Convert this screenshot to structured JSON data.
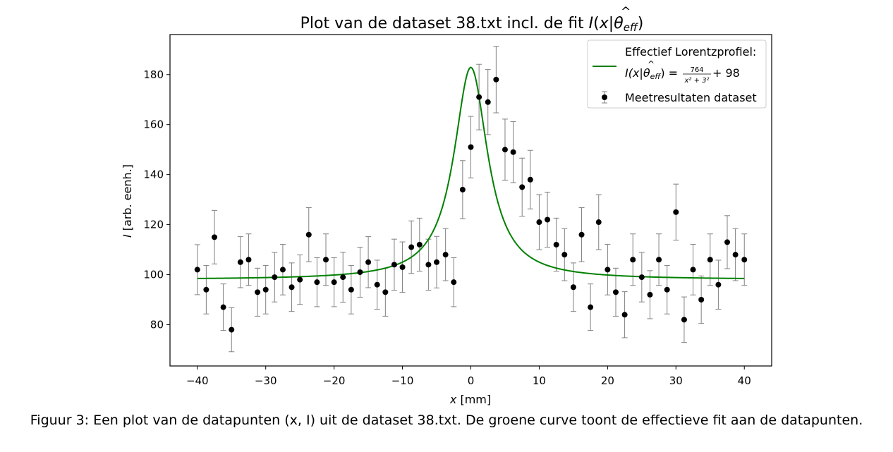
{
  "chart_data": {
    "type": "scatter",
    "title": {
      "prefix": "Plot van de dataset 38.txt incl. de fit ",
      "math": {
        "I": "I",
        "open": "(",
        "x": "x",
        "bar": "|",
        "theta": "θ",
        "hat": "^",
        "sub": "eff",
        "close": ")"
      }
    },
    "xlabel": {
      "var": "x",
      "unit": " [mm]"
    },
    "ylabel": {
      "var": "I",
      "unit": " [arb. eenh.]"
    },
    "xlim": [
      -44,
      44
    ],
    "ylim": [
      63.5,
      196
    ],
    "x_ticks": [
      -40,
      -30,
      -20,
      -10,
      0,
      10,
      20,
      30,
      40
    ],
    "x_tick_labels": [
      "−40",
      "−30",
      "−20",
      "−10",
      "0",
      "10",
      "20",
      "30",
      "40"
    ],
    "y_ticks": [
      80,
      100,
      120,
      140,
      160,
      180
    ],
    "y_tick_labels": [
      "80",
      "100",
      "120",
      "140",
      "160",
      "180"
    ],
    "grid": false,
    "legend_position": "top-right",
    "legend": {
      "fit_label_line1": "Effectief Lorentzprofiel:",
      "fit_formula": {
        "lhs": "I(x|θ",
        "hat": "^",
        "sub": "eff",
        "rhs_open": ")",
        "eq": " = ",
        "numerator": "764",
        "denominator": "x² + 3²",
        "tail": " + 98"
      },
      "data_label": "Meetresultaten dataset"
    },
    "fit": {
      "label": "Effectief Lorentzprofiel",
      "amplitude": 764,
      "gamma": 3,
      "offset": 98,
      "x_range": [
        -40,
        40
      ],
      "color": "#008000"
    },
    "series": [
      {
        "name": "Meetresultaten dataset",
        "color": "#000000",
        "errorbar_color": "#808080",
        "points": [
          {
            "x": -40.0,
            "y": 102,
            "err": 10.0
          },
          {
            "x": -38.7,
            "y": 94,
            "err": 9.7
          },
          {
            "x": -37.5,
            "y": 115,
            "err": 10.7
          },
          {
            "x": -36.2,
            "y": 87,
            "err": 9.3
          },
          {
            "x": -35.0,
            "y": 78,
            "err": 8.8
          },
          {
            "x": -33.7,
            "y": 105,
            "err": 10.2
          },
          {
            "x": -32.5,
            "y": 106,
            "err": 10.3
          },
          {
            "x": -31.2,
            "y": 93,
            "err": 9.6
          },
          {
            "x": -30.0,
            "y": 94,
            "err": 9.7
          },
          {
            "x": -28.7,
            "y": 99,
            "err": 9.9
          },
          {
            "x": -27.5,
            "y": 102,
            "err": 10.1
          },
          {
            "x": -26.2,
            "y": 95,
            "err": 9.7
          },
          {
            "x": -25.0,
            "y": 98,
            "err": 9.9
          },
          {
            "x": -23.7,
            "y": 116,
            "err": 10.8
          },
          {
            "x": -22.5,
            "y": 97,
            "err": 9.8
          },
          {
            "x": -21.2,
            "y": 106,
            "err": 10.3
          },
          {
            "x": -20.0,
            "y": 97,
            "err": 9.8
          },
          {
            "x": -18.7,
            "y": 99,
            "err": 10.0
          },
          {
            "x": -17.5,
            "y": 94,
            "err": 9.7
          },
          {
            "x": -16.2,
            "y": 101,
            "err": 10.0
          },
          {
            "x": -15.0,
            "y": 105,
            "err": 10.2
          },
          {
            "x": -13.7,
            "y": 96,
            "err": 9.8
          },
          {
            "x": -12.5,
            "y": 93,
            "err": 9.6
          },
          {
            "x": -11.2,
            "y": 104,
            "err": 10.2
          },
          {
            "x": -10.0,
            "y": 103,
            "err": 10.1
          },
          {
            "x": -8.7,
            "y": 111,
            "err": 10.5
          },
          {
            "x": -7.5,
            "y": 112,
            "err": 10.6
          },
          {
            "x": -6.2,
            "y": 104,
            "err": 10.2
          },
          {
            "x": -5.0,
            "y": 105,
            "err": 10.3
          },
          {
            "x": -3.7,
            "y": 108,
            "err": 10.4
          },
          {
            "x": -2.5,
            "y": 97,
            "err": 9.8
          },
          {
            "x": -1.2,
            "y": 134,
            "err": 11.6
          },
          {
            "x": 0.0,
            "y": 151,
            "err": 12.3
          },
          {
            "x": 1.2,
            "y": 171,
            "err": 13.1
          },
          {
            "x": 2.5,
            "y": 169,
            "err": 13.0
          },
          {
            "x": 3.7,
            "y": 178,
            "err": 13.3
          },
          {
            "x": 5.0,
            "y": 150,
            "err": 12.2
          },
          {
            "x": 6.2,
            "y": 149,
            "err": 12.2
          },
          {
            "x": 7.5,
            "y": 135,
            "err": 11.6
          },
          {
            "x": 8.7,
            "y": 138,
            "err": 11.7
          },
          {
            "x": 10.0,
            "y": 121,
            "err": 11.0
          },
          {
            "x": 11.2,
            "y": 122,
            "err": 11.0
          },
          {
            "x": 12.5,
            "y": 112,
            "err": 10.6
          },
          {
            "x": 13.7,
            "y": 108,
            "err": 10.4
          },
          {
            "x": 15.0,
            "y": 95,
            "err": 9.7
          },
          {
            "x": 16.2,
            "y": 116,
            "err": 10.8
          },
          {
            "x": 17.5,
            "y": 87,
            "err": 9.3
          },
          {
            "x": 18.7,
            "y": 121,
            "err": 11.0
          },
          {
            "x": 20.0,
            "y": 102,
            "err": 10.1
          },
          {
            "x": 21.2,
            "y": 93,
            "err": 9.6
          },
          {
            "x": 22.5,
            "y": 84,
            "err": 9.2
          },
          {
            "x": 23.7,
            "y": 106,
            "err": 10.3
          },
          {
            "x": 25.0,
            "y": 99,
            "err": 9.9
          },
          {
            "x": 26.2,
            "y": 92,
            "err": 9.6
          },
          {
            "x": 27.5,
            "y": 106,
            "err": 10.3
          },
          {
            "x": 28.7,
            "y": 94,
            "err": 9.7
          },
          {
            "x": 30.0,
            "y": 125,
            "err": 11.2
          },
          {
            "x": 31.2,
            "y": 82,
            "err": 9.1
          },
          {
            "x": 32.5,
            "y": 102,
            "err": 10.1
          },
          {
            "x": 33.7,
            "y": 90,
            "err": 9.5
          },
          {
            "x": 35.0,
            "y": 106,
            "err": 10.3
          },
          {
            "x": 36.2,
            "y": 96,
            "err": 9.8
          },
          {
            "x": 37.5,
            "y": 113,
            "err": 10.6
          },
          {
            "x": 38.7,
            "y": 108,
            "err": 10.4
          },
          {
            "x": 40.0,
            "y": 106,
            "err": 10.3
          }
        ]
      }
    ]
  },
  "caption": "Figuur 3: Een plot van de datapunten (x, I) uit de dataset 38.txt. De groene curve toont de effectieve fit aan de datapunten."
}
